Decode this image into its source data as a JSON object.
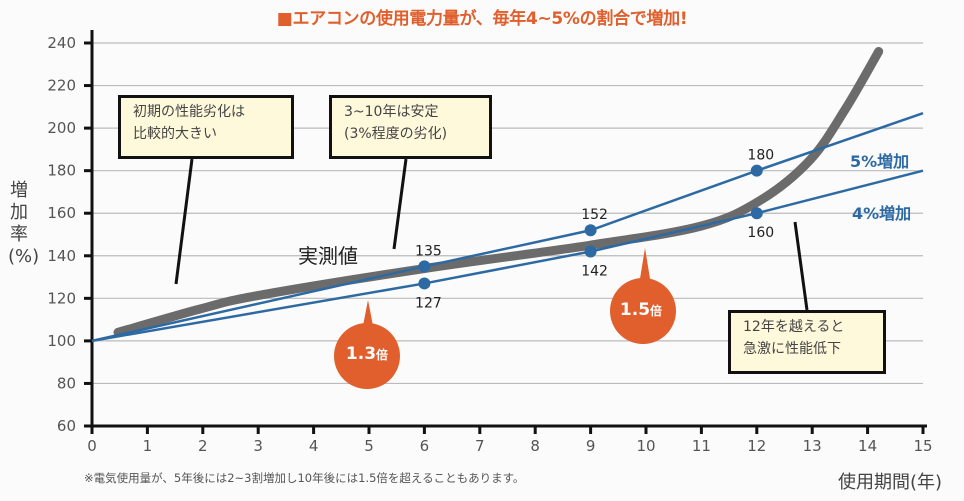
{
  "title": "■エアコンの使用電力量が、毎年4~5%の割合で増加!",
  "footnote": "※電気使用量が、5年後には2~3割増加し10年後には1.5倍を超えることもあります。",
  "annotations": {
    "early": [
      "初期の性能劣化は",
      "比較的大きい"
    ],
    "stable": [
      "3~10年は安定",
      "(3%程度の劣化)"
    ],
    "after12": [
      "12年を越えると",
      "急激に性能低下"
    ],
    "measured": "実測値"
  },
  "badges": [
    {
      "value": "1.3",
      "unit": "倍"
    },
    {
      "value": "1.5",
      "unit": "倍"
    }
  ],
  "colors": {
    "accent": "#e05f2c",
    "line": "#2d6aa3",
    "measured": "#6b6b6b",
    "note_bg": "#fff9dc"
  },
  "chart_data": {
    "type": "line",
    "title": "■エアコンの使用電力量が、毎年4~5%の割合で増加!",
    "xlabel": "使用期間(年)",
    "ylabel": "増加率(%)",
    "xlim": [
      0,
      15
    ],
    "ylim": [
      60,
      240
    ],
    "xticks": [
      "0",
      "1",
      "2",
      "3",
      "4",
      "5",
      "6",
      "7",
      "8",
      "9",
      "10",
      "11",
      "12",
      "13",
      "14",
      "15"
    ],
    "yticks": [
      "60",
      "80",
      "100",
      "120",
      "140",
      "160",
      "180",
      "200",
      "220",
      "240"
    ],
    "grid": true,
    "series": [
      {
        "name": "5%増加",
        "x": [
          0,
          6,
          9,
          12,
          15
        ],
        "y": [
          100,
          135,
          152,
          180,
          207
        ],
        "markers": [
          {
            "x": 6,
            "y": 135,
            "label": "135"
          },
          {
            "x": 9,
            "y": 152,
            "label": "152"
          },
          {
            "x": 12,
            "y": 180,
            "label": "180"
          }
        ]
      },
      {
        "name": "4%増加",
        "x": [
          0,
          6,
          9,
          12,
          15
        ],
        "y": [
          100,
          127,
          142,
          160,
          180
        ],
        "markers": [
          {
            "x": 6,
            "y": 127,
            "label": "127"
          },
          {
            "x": 9,
            "y": 142,
            "label": "142"
          },
          {
            "x": 12,
            "y": 160,
            "label": "160"
          }
        ]
      },
      {
        "name": "実測値",
        "x": [
          0.47,
          1.95,
          3.03,
          6,
          9,
          11,
          12.06,
          12.96,
          13.6,
          14.2
        ],
        "y": [
          104,
          115,
          121.5,
          134,
          145,
          154,
          166,
          185,
          209,
          236
        ]
      }
    ]
  }
}
